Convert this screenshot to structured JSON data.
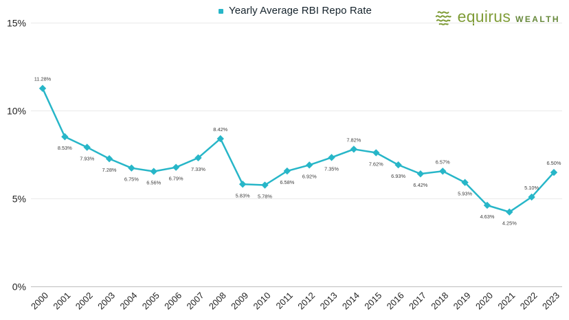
{
  "legend": {
    "marker_color": "#27b6c8"
  },
  "logo": {
    "brand": "equirus",
    "suffix": "WEALTH",
    "brand_color": "#7f9c37",
    "suffix_color": "#66883a",
    "icon": "leaf-sphere-icon"
  },
  "colors": {
    "background": "#ffffff",
    "line": "#27b6c8",
    "marker": "#27b6c8",
    "gridline": "#e9e9e9",
    "zero_line": "#c6c6c6",
    "axis_text": "#1f1f1f",
    "data_label_text": "#3c3c3c"
  },
  "chart_data": {
    "type": "line",
    "title": "",
    "legend_entries": [
      "Yearly Average RBI Repo Rate"
    ],
    "legend_position": "top-center",
    "grid": "horizontal",
    "marker": "diamond",
    "categories": [
      "2000",
      "2001",
      "2002",
      "2003",
      "2004",
      "2005",
      "2006",
      "2007",
      "2008",
      "2009",
      "2010",
      "2011",
      "2012",
      "2013",
      "2014",
      "2015",
      "2016",
      "2017",
      "2018",
      "2019",
      "2020",
      "2021",
      "2022",
      "2023"
    ],
    "values": [
      11.28,
      8.53,
      7.93,
      7.28,
      6.75,
      6.56,
      6.79,
      7.33,
      8.42,
      5.83,
      5.78,
      6.58,
      6.92,
      7.35,
      7.82,
      7.62,
      6.93,
      6.42,
      6.57,
      5.93,
      4.63,
      4.25,
      5.1,
      6.5
    ],
    "data_labels": [
      "11.28%",
      "8.53%",
      "7.93%",
      "7.28%",
      "6.75%",
      "6.56%",
      "6.79%",
      "7.33%",
      "8.42%",
      "5.83%",
      "5.78%",
      "6.58%",
      "6.92%",
      "7.35%",
      "7.82%",
      "7.62%",
      "6.93%",
      "6.42%",
      "6.57%",
      "5.93%",
      "4.63%",
      "4.25%",
      "5.10%",
      "6.50%"
    ],
    "label_placement": [
      "above",
      "below",
      "below",
      "below",
      "below",
      "below",
      "below",
      "below",
      "above",
      "below",
      "below",
      "below",
      "below",
      "below",
      "above",
      "below",
      "below",
      "below",
      "above",
      "below",
      "below",
      "below",
      "above",
      "above"
    ],
    "ylim": [
      0,
      15
    ],
    "yticks": [
      0,
      5,
      10,
      15
    ],
    "ytick_labels": [
      "0%",
      "5%",
      "10%",
      "15%"
    ],
    "xtick_rotation_deg": -45
  }
}
